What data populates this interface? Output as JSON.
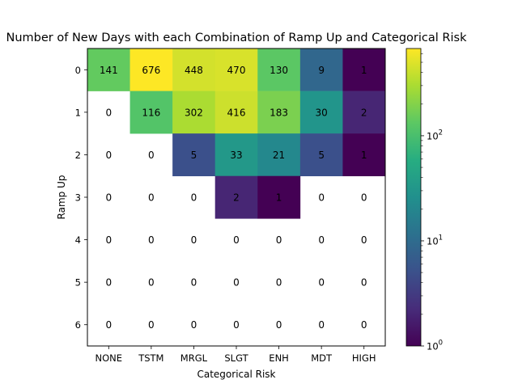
{
  "chart_data": {
    "type": "heatmap",
    "title": "Number of New Days with each Combination of Ramp Up and Categorical Risk",
    "xlabel": "Categorical Risk",
    "ylabel": "Ramp Up",
    "x_categories": [
      "NONE",
      "TSTM",
      "MRGL",
      "SLGT",
      "ENH",
      "MDT",
      "HIGH"
    ],
    "y_categories": [
      "0",
      "1",
      "2",
      "3",
      "4",
      "5",
      "6"
    ],
    "values": [
      [
        141,
        676,
        448,
        470,
        130,
        9,
        1
      ],
      [
        0,
        116,
        302,
        416,
        183,
        30,
        2
      ],
      [
        0,
        0,
        5,
        33,
        21,
        5,
        1
      ],
      [
        0,
        0,
        0,
        2,
        1,
        0,
        0
      ],
      [
        0,
        0,
        0,
        0,
        0,
        0,
        0
      ],
      [
        0,
        0,
        0,
        0,
        0,
        0,
        0
      ],
      [
        0,
        0,
        0,
        0,
        0,
        0,
        0
      ]
    ],
    "zero_cells_color": "#ffffff",
    "colorbar": {
      "scale": "log",
      "range": [
        1,
        676
      ],
      "colormap": "viridis",
      "ticks": [
        {
          "value": 1,
          "base": "10",
          "exp": "0"
        },
        {
          "value": 10,
          "base": "10",
          "exp": "1"
        },
        {
          "value": 100,
          "base": "10",
          "exp": "2"
        }
      ]
    }
  }
}
